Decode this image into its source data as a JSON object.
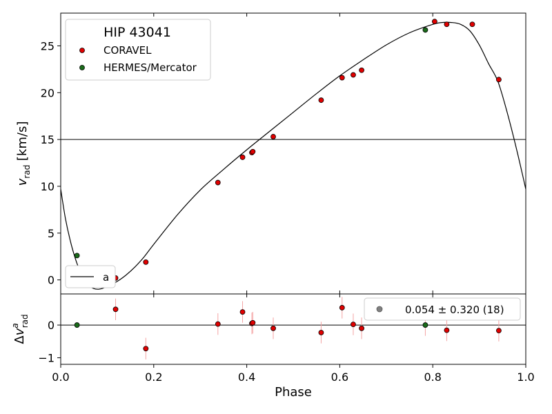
{
  "chart_data": [
    {
      "type": "scatter",
      "panel": "top",
      "title": "",
      "legend_title": "HIP 43041",
      "xlabel": "",
      "ylabel": "v_rad [km/s]",
      "xlim": [
        0.0,
        1.0
      ],
      "ylim": [
        -1.5,
        28.5
      ],
      "y_ticks": [
        0,
        5,
        10,
        15,
        20,
        25
      ],
      "grid": false,
      "legend_placement": "top-left",
      "reference_line_y": 15.0,
      "model_legend_label": "a",
      "model_legend_placement": "bottom-left",
      "series": [
        {
          "name": "CORAVEL",
          "color": "#e00000",
          "x": [
            0.118,
            0.183,
            0.338,
            0.391,
            0.411,
            0.413,
            0.457,
            0.56,
            0.605,
            0.629,
            0.647,
            0.804,
            0.83,
            0.885,
            0.942
          ],
          "y": [
            0.2,
            1.9,
            10.4,
            13.1,
            13.6,
            13.7,
            15.3,
            19.2,
            21.6,
            21.9,
            22.4,
            27.6,
            27.3,
            27.3,
            21.4
          ]
        },
        {
          "name": "HERMES/Mercator",
          "color": "#1a6b1a",
          "x": [
            0.035,
            0.784
          ],
          "y": [
            2.6,
            26.7
          ]
        }
      ],
      "model_curve": {
        "x": [
          0.0,
          0.01,
          0.02,
          0.03,
          0.04,
          0.05,
          0.06,
          0.07,
          0.08,
          0.09,
          0.1,
          0.12,
          0.14,
          0.16,
          0.18,
          0.2,
          0.25,
          0.3,
          0.35,
          0.4,
          0.45,
          0.5,
          0.55,
          0.6,
          0.65,
          0.7,
          0.75,
          0.8,
          0.82,
          0.84,
          0.86,
          0.88,
          0.9,
          0.92,
          0.94,
          0.96,
          0.98,
          1.0
        ],
        "y": [
          9.7,
          6.6,
          4.3,
          2.5,
          1.1,
          0.1,
          -0.6,
          -0.9,
          -1.0,
          -0.9,
          -0.7,
          -0.2,
          0.5,
          1.4,
          2.5,
          3.8,
          6.9,
          9.6,
          11.8,
          13.9,
          15.9,
          17.9,
          19.9,
          21.8,
          23.5,
          25.1,
          26.4,
          27.3,
          27.5,
          27.5,
          27.3,
          26.6,
          25.1,
          23.1,
          21.2,
          17.9,
          14.0,
          9.7
        ]
      }
    },
    {
      "type": "scatter",
      "panel": "bottom",
      "title": "",
      "xlabel": "Phase",
      "ylabel": "Δv^a_rad",
      "xlim": [
        0.0,
        1.0
      ],
      "ylim": [
        -1.2,
        0.95
      ],
      "x_ticks": [
        0.0,
        0.2,
        0.4,
        0.6,
        0.8,
        1.0
      ],
      "x_tick_labels": [
        "0.0",
        "0.2",
        "0.4",
        "0.6",
        "0.8",
        "1.0"
      ],
      "y_ticks": [
        -1,
        0
      ],
      "grid": false,
      "zero_line": true,
      "legend_placement": "top-right",
      "legend_label": "0.054 ± 0.320 (18)",
      "legend_marker_color": "#808080",
      "errorbar_color": "#f4a3a3",
      "series": [
        {
          "name": "CORAVEL",
          "color": "#e00000",
          "x": [
            0.118,
            0.183,
            0.338,
            0.391,
            0.411,
            0.413,
            0.457,
            0.56,
            0.605,
            0.629,
            0.647,
            0.83,
            0.942
          ],
          "y": [
            0.48,
            -0.72,
            0.03,
            0.4,
            0.05,
            0.07,
            -0.1,
            -0.23,
            0.53,
            0.02,
            -0.1,
            -0.16,
            -0.17
          ],
          "err": [
            0.33,
            0.33,
            0.33,
            0.33,
            0.33,
            0.33,
            0.33,
            0.33,
            0.33,
            0.33,
            0.33,
            0.33,
            0.33
          ]
        },
        {
          "name": "HERMES/Mercator",
          "color": "#1a6b1a",
          "x": [
            0.035,
            0.784
          ],
          "y": [
            0.0,
            0.0
          ],
          "err": [
            0.0,
            0.33
          ]
        }
      ]
    }
  ]
}
